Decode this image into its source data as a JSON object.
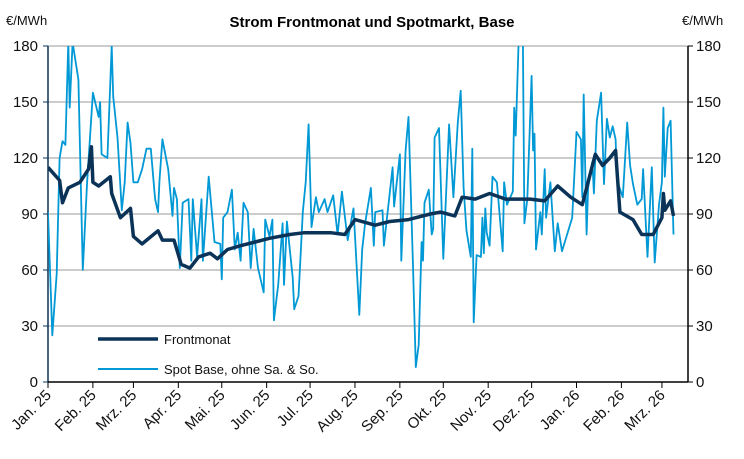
{
  "chart_data": {
    "type": "line",
    "title": "Strom Frontmonat und Spotmarkt, Base",
    "ylabel_left": "€/MWh",
    "ylabel_right": "€/MWh",
    "ylim": [
      0,
      180
    ],
    "yticks": [
      0,
      30,
      60,
      90,
      120,
      150,
      180
    ],
    "xlim": [
      "2025-01-01",
      "2026-03-19"
    ],
    "xtick_dates": [
      "2025-01-01",
      "2025-02-01",
      "2025-03-01",
      "2025-04-01",
      "2025-05-01",
      "2025-06-01",
      "2025-07-01",
      "2025-08-01",
      "2025-09-01",
      "2025-10-01",
      "2025-11-01",
      "2025-12-01",
      "2026-01-01",
      "2026-02-01",
      "2026-03-01"
    ],
    "xtick_labels": [
      "Jan. 25",
      "Feb. 25",
      "Mrz. 25",
      "Apr. 25",
      "Mai. 25",
      "Jun. 25",
      "Jul. 25",
      "Aug. 25",
      "Sep. 25",
      "Okt. 25",
      "Nov. 25",
      "Dez. 25",
      "Jan. 26",
      "Feb. 26",
      "Mrz. 26"
    ],
    "grid": true,
    "legend_placement": "bottom-left",
    "series": [
      {
        "name": "Frontmonat",
        "color": "#0b3358",
        "points": [
          [
            "2025-01-01",
            115
          ],
          [
            "2025-01-09",
            108
          ],
          [
            "2025-01-11",
            96
          ],
          [
            "2025-01-15",
            104
          ],
          [
            "2025-01-23",
            107
          ],
          [
            "2025-01-29",
            114
          ],
          [
            "2025-01-31",
            126
          ],
          [
            "2025-02-01",
            107
          ],
          [
            "2025-02-05",
            105
          ],
          [
            "2025-02-13",
            110
          ],
          [
            "2025-02-14",
            101
          ],
          [
            "2025-02-20",
            88
          ],
          [
            "2025-02-27",
            93
          ],
          [
            "2025-03-01",
            78
          ],
          [
            "2025-03-07",
            74
          ],
          [
            "2025-03-18",
            81
          ],
          [
            "2025-03-21",
            76
          ],
          [
            "2025-03-29",
            76
          ],
          [
            "2025-04-03",
            63
          ],
          [
            "2025-04-09",
            61
          ],
          [
            "2025-04-15",
            67
          ],
          [
            "2025-04-23",
            69
          ],
          [
            "2025-04-28",
            66
          ],
          [
            "2025-05-05",
            71
          ],
          [
            "2025-05-14",
            73
          ],
          [
            "2025-05-24",
            75
          ],
          [
            "2025-06-03",
            77
          ],
          [
            "2025-06-17",
            79
          ],
          [
            "2025-06-27",
            80
          ],
          [
            "2025-07-15",
            80
          ],
          [
            "2025-07-25",
            79
          ],
          [
            "2025-08-01",
            87
          ],
          [
            "2025-08-15",
            84
          ],
          [
            "2025-08-25",
            86
          ],
          [
            "2025-09-07",
            87
          ],
          [
            "2025-09-22",
            90
          ],
          [
            "2025-09-29",
            91
          ],
          [
            "2025-10-09",
            89
          ],
          [
            "2025-10-14",
            99
          ],
          [
            "2025-10-23",
            98
          ],
          [
            "2025-11-02",
            101
          ],
          [
            "2025-11-13",
            98
          ],
          [
            "2025-11-30",
            98
          ],
          [
            "2025-12-10",
            97
          ],
          [
            "2025-12-19",
            105
          ],
          [
            "2025-12-28",
            99
          ],
          [
            "2026-01-05",
            95
          ],
          [
            "2026-01-08",
            104
          ],
          [
            "2026-01-14",
            122
          ],
          [
            "2026-01-19",
            116
          ],
          [
            "2026-01-24",
            120
          ],
          [
            "2026-01-28",
            124
          ],
          [
            "2026-01-31",
            91
          ],
          [
            "2026-02-09",
            87
          ],
          [
            "2026-02-15",
            79
          ],
          [
            "2026-02-23",
            79
          ],
          [
            "2026-03-01",
            88
          ],
          [
            "2026-03-02",
            101
          ],
          [
            "2026-03-03",
            92
          ],
          [
            "2026-03-07",
            97
          ],
          [
            "2026-03-09",
            89
          ]
        ]
      },
      {
        "name": "Spot Base, ohne Sa. & So.",
        "color": "#0099d6",
        "points": [
          [
            "2025-01-01",
            91
          ],
          [
            "2025-01-04",
            25
          ],
          [
            "2025-01-07",
            58
          ],
          [
            "2025-01-09",
            120
          ],
          [
            "2025-01-11",
            129
          ],
          [
            "2025-01-13",
            127
          ],
          [
            "2025-01-15",
            182
          ],
          [
            "2025-01-16",
            147
          ],
          [
            "2025-01-18",
            182
          ],
          [
            "2025-01-22",
            162
          ],
          [
            "2025-01-25",
            60
          ],
          [
            "2025-01-28",
            107
          ],
          [
            "2025-02-01",
            155
          ],
          [
            "2025-02-05",
            142
          ],
          [
            "2025-02-06",
            150
          ],
          [
            "2025-02-07",
            122
          ],
          [
            "2025-02-11",
            120
          ],
          [
            "2025-02-14",
            180
          ],
          [
            "2025-02-15",
            153
          ],
          [
            "2025-02-18",
            131
          ],
          [
            "2025-02-21",
            92
          ],
          [
            "2025-02-23",
            107
          ],
          [
            "2025-02-25",
            139
          ],
          [
            "2025-02-27",
            128
          ],
          [
            "2025-03-01",
            107
          ],
          [
            "2025-03-04",
            107
          ],
          [
            "2025-03-07",
            114
          ],
          [
            "2025-03-10",
            125
          ],
          [
            "2025-03-13",
            125
          ],
          [
            "2025-03-16",
            98
          ],
          [
            "2025-03-18",
            91
          ],
          [
            "2025-03-19",
            108
          ],
          [
            "2025-03-21",
            130
          ],
          [
            "2025-03-25",
            114
          ],
          [
            "2025-03-28",
            89
          ],
          [
            "2025-03-29",
            104
          ],
          [
            "2025-03-31",
            98
          ],
          [
            "2025-04-02",
            61
          ],
          [
            "2025-04-04",
            96
          ],
          [
            "2025-04-08",
            98
          ],
          [
            "2025-04-10",
            65
          ],
          [
            "2025-04-11",
            98
          ],
          [
            "2025-04-14",
            67
          ],
          [
            "2025-04-17",
            98
          ],
          [
            "2025-04-18",
            65
          ],
          [
            "2025-04-22",
            110
          ],
          [
            "2025-04-26",
            75
          ],
          [
            "2025-04-30",
            74
          ],
          [
            "2025-05-01",
            55
          ],
          [
            "2025-05-02",
            88
          ],
          [
            "2025-05-05",
            91
          ],
          [
            "2025-05-08",
            103
          ],
          [
            "2025-05-10",
            71
          ],
          [
            "2025-05-12",
            80
          ],
          [
            "2025-05-14",
            65
          ],
          [
            "2025-05-16",
            96
          ],
          [
            "2025-05-19",
            91
          ],
          [
            "2025-05-21",
            61
          ],
          [
            "2025-05-23",
            82
          ],
          [
            "2025-05-26",
            61
          ],
          [
            "2025-05-30",
            48
          ],
          [
            "2025-05-31",
            87
          ],
          [
            "2025-06-03",
            78
          ],
          [
            "2025-06-05",
            87
          ],
          [
            "2025-06-06",
            33
          ],
          [
            "2025-06-09",
            52
          ],
          [
            "2025-06-12",
            85
          ],
          [
            "2025-06-13",
            52
          ],
          [
            "2025-06-15",
            86
          ],
          [
            "2025-06-19",
            56
          ],
          [
            "2025-06-20",
            39
          ],
          [
            "2025-06-23",
            46
          ],
          [
            "2025-06-26",
            91
          ],
          [
            "2025-06-28",
            107
          ],
          [
            "2025-06-30",
            138
          ],
          [
            "2025-07-02",
            83
          ],
          [
            "2025-07-05",
            99
          ],
          [
            "2025-07-07",
            91
          ],
          [
            "2025-07-11",
            98
          ],
          [
            "2025-07-13",
            91
          ],
          [
            "2025-07-17",
            100
          ],
          [
            "2025-07-20",
            79
          ],
          [
            "2025-07-23",
            102
          ],
          [
            "2025-07-27",
            76
          ],
          [
            "2025-07-31",
            93
          ],
          [
            "2025-08-04",
            36
          ],
          [
            "2025-08-06",
            71
          ],
          [
            "2025-08-08",
            85
          ],
          [
            "2025-08-12",
            104
          ],
          [
            "2025-08-14",
            73
          ],
          [
            "2025-08-15",
            91
          ],
          [
            "2025-08-20",
            92
          ],
          [
            "2025-08-21",
            73
          ],
          [
            "2025-08-27",
            115
          ],
          [
            "2025-08-28",
            94
          ],
          [
            "2025-09-01",
            122
          ],
          [
            "2025-09-02",
            65
          ],
          [
            "2025-09-05",
            124
          ],
          [
            "2025-09-07",
            142
          ],
          [
            "2025-09-10",
            64
          ],
          [
            "2025-09-12",
            8
          ],
          [
            "2025-09-14",
            20
          ],
          [
            "2025-09-16",
            75
          ],
          [
            "2025-09-17",
            65
          ],
          [
            "2025-09-18",
            96
          ],
          [
            "2025-09-21",
            103
          ],
          [
            "2025-09-23",
            79
          ],
          [
            "2025-09-24",
            82
          ],
          [
            "2025-09-25",
            131
          ],
          [
            "2025-09-28",
            136
          ],
          [
            "2025-10-01",
            66
          ],
          [
            "2025-10-05",
            138
          ],
          [
            "2025-10-08",
            99
          ],
          [
            "2025-10-11",
            139
          ],
          [
            "2025-10-13",
            156
          ],
          [
            "2025-10-15",
            104
          ],
          [
            "2025-10-17",
            81
          ],
          [
            "2025-10-20",
            67
          ],
          [
            "2025-10-21",
            125
          ],
          [
            "2025-10-22",
            32
          ],
          [
            "2025-10-24",
            68
          ],
          [
            "2025-10-27",
            67
          ],
          [
            "2025-10-28",
            88
          ],
          [
            "2025-10-29",
            69
          ],
          [
            "2025-10-30",
            93
          ],
          [
            "2025-10-31",
            80
          ],
          [
            "2025-11-02",
            73
          ],
          [
            "2025-11-04",
            110
          ],
          [
            "2025-11-07",
            107
          ],
          [
            "2025-11-11",
            70
          ],
          [
            "2025-11-12",
            107
          ],
          [
            "2025-11-14",
            95
          ],
          [
            "2025-11-18",
            102
          ],
          [
            "2025-11-19",
            147
          ],
          [
            "2025-11-20",
            132
          ],
          [
            "2025-11-22",
            182
          ],
          [
            "2025-11-25",
            182
          ],
          [
            "2025-11-26",
            85
          ],
          [
            "2025-11-28",
            98
          ],
          [
            "2025-12-01",
            164
          ],
          [
            "2025-12-02",
            124
          ],
          [
            "2025-12-03",
            133
          ],
          [
            "2025-12-04",
            71
          ],
          [
            "2025-12-07",
            91
          ],
          [
            "2025-12-08",
            79
          ],
          [
            "2025-12-10",
            114
          ],
          [
            "2025-12-11",
            88
          ],
          [
            "2025-12-14",
            107
          ],
          [
            "2025-12-17",
            70
          ],
          [
            "2025-12-19",
            85
          ],
          [
            "2025-12-22",
            70
          ],
          [
            "2025-12-29",
            88
          ],
          [
            "2026-01-01",
            134
          ],
          [
            "2026-01-04",
            130
          ],
          [
            "2026-01-05",
            99
          ],
          [
            "2026-01-06",
            154
          ],
          [
            "2026-01-08",
            79
          ],
          [
            "2026-01-09",
            104
          ],
          [
            "2026-01-12",
            118
          ],
          [
            "2026-01-13",
            101
          ],
          [
            "2026-01-15",
            140
          ],
          [
            "2026-01-18",
            155
          ],
          [
            "2026-01-20",
            106
          ],
          [
            "2026-01-22",
            141
          ],
          [
            "2026-01-24",
            131
          ],
          [
            "2026-01-26",
            137
          ],
          [
            "2026-01-28",
            130
          ],
          [
            "2026-01-29",
            108
          ],
          [
            "2026-02-02",
            99
          ],
          [
            "2026-02-05",
            139
          ],
          [
            "2026-02-07",
            116
          ],
          [
            "2026-02-09",
            106
          ],
          [
            "2026-02-12",
            95
          ],
          [
            "2026-02-15",
            98
          ],
          [
            "2026-02-16",
            114
          ],
          [
            "2026-02-19",
            67
          ],
          [
            "2026-02-22",
            115
          ],
          [
            "2026-02-24",
            64
          ],
          [
            "2026-02-27",
            95
          ],
          [
            "2026-03-01",
            107
          ],
          [
            "2026-03-02",
            147
          ],
          [
            "2026-03-03",
            110
          ],
          [
            "2026-03-05",
            136
          ],
          [
            "2026-03-07",
            140
          ],
          [
            "2026-03-09",
            79
          ]
        ]
      }
    ]
  }
}
